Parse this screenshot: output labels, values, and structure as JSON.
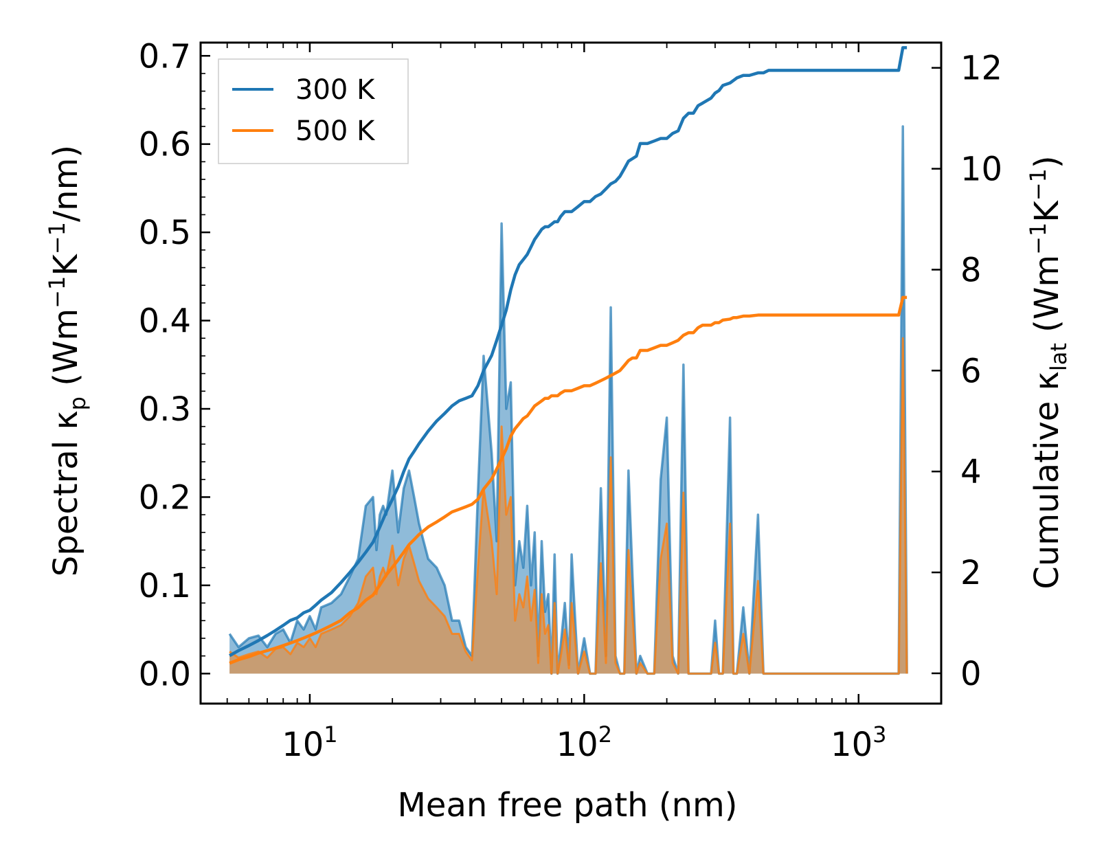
{
  "chart_data": {
    "type": "line",
    "xscale": "log",
    "xlabel": "Mean free path (nm)",
    "ylabel_left": "Spectral κp (Wm−1K−1/nm)",
    "ylabel_right": "Cumulative κlat (Wm−1K−1)",
    "xlim": [
      4.0,
      2000
    ],
    "ylim_left": [
      -0.034,
      0.715
    ],
    "ylim_right": [
      -0.6,
      12.5
    ],
    "xticks": [
      {
        "base": "10",
        "exp": "1",
        "value": 10
      },
      {
        "base": "10",
        "exp": "2",
        "value": 100
      },
      {
        "base": "10",
        "exp": "3",
        "value": 1000
      }
    ],
    "yticks_left": [
      "0.0",
      "0.1",
      "0.2",
      "0.3",
      "0.4",
      "0.5",
      "0.6",
      "0.7"
    ],
    "yticks_right": [
      "0",
      "2",
      "4",
      "6",
      "8",
      "10",
      "12"
    ],
    "colors": {
      "s300": "#1f77b4",
      "s500": "#ff7f0e",
      "fill300": "#1f77b4",
      "fill500": "#ff7f0e"
    },
    "legend": {
      "position": "top-left",
      "entries": [
        "300 K",
        "500 K"
      ]
    },
    "spectral_300K": {
      "x": [
        5.1,
        5.5,
        6.0,
        6.5,
        7.0,
        7.5,
        8.0,
        8.5,
        9.0,
        9.5,
        10,
        10.5,
        11,
        12,
        13,
        14,
        15,
        16,
        17,
        17.5,
        18,
        18.5,
        19,
        20,
        21,
        22,
        23,
        24,
        25,
        27,
        29,
        31,
        33,
        35,
        37,
        39,
        41,
        43,
        46,
        48,
        50,
        52,
        54,
        56,
        58,
        60,
        62,
        64,
        66,
        68,
        70,
        72,
        74,
        76,
        78,
        80,
        82,
        85,
        88,
        90,
        95,
        100,
        105,
        110,
        115,
        120,
        125,
        130,
        135,
        140,
        145,
        150,
        155,
        160,
        170,
        180,
        190,
        200,
        210,
        220,
        230,
        240,
        250,
        260,
        270,
        290,
        300,
        310,
        320,
        340,
        350,
        360,
        380,
        400,
        430,
        450,
        470,
        500,
        600,
        800,
        1000,
        1200,
        1400,
        1450,
        1500
      ],
      "y": [
        0.045,
        0.03,
        0.04,
        0.043,
        0.03,
        0.045,
        0.05,
        0.035,
        0.06,
        0.05,
        0.065,
        0.05,
        0.075,
        0.08,
        0.09,
        0.11,
        0.13,
        0.19,
        0.2,
        0.14,
        0.18,
        0.19,
        0.18,
        0.23,
        0.16,
        0.21,
        0.23,
        0.2,
        0.17,
        0.13,
        0.12,
        0.1,
        0.06,
        0.06,
        0.03,
        0.02,
        0.205,
        0.36,
        0.25,
        0.15,
        0.51,
        0.3,
        0.33,
        0.1,
        0.15,
        0.12,
        0.19,
        0.1,
        0.16,
        0.02,
        0.15,
        0.07,
        0.09,
        0.0,
        0.135,
        0.0,
        0.03,
        0.08,
        0.01,
        0.135,
        0.0,
        0.04,
        0.0,
        0.0,
        0.21,
        0.02,
        0.415,
        0.02,
        0.0,
        0.0,
        0.23,
        0.11,
        0.0,
        0.02,
        0.0,
        0.0,
        0.22,
        0.29,
        0.02,
        0.0,
        0.35,
        0.0,
        0.0,
        0.0,
        0.0,
        0.0,
        0.06,
        0.0,
        0.0,
        0.29,
        0.0,
        0.0,
        0.075,
        0.0,
        0.18,
        0.0,
        0.0,
        0.0,
        0.0,
        0.0,
        0.0,
        0.0,
        0.0,
        0.62,
        0.0
      ],
      "cumulative": [
        0.35,
        0.45,
        0.55,
        0.65,
        0.75,
        0.85,
        0.95,
        1.05,
        1.1,
        1.2,
        1.25,
        1.35,
        1.45,
        1.6,
        1.8,
        2.0,
        2.2,
        2.4,
        2.6,
        2.75,
        2.9,
        3.05,
        3.2,
        3.45,
        3.7,
        4.0,
        4.25,
        4.4,
        4.55,
        4.8,
        5.0,
        5.15,
        5.3,
        5.4,
        5.45,
        5.5,
        5.7,
        6.0,
        6.3,
        6.6,
        6.9,
        7.2,
        7.6,
        7.9,
        8.1,
        8.2,
        8.3,
        8.45,
        8.6,
        8.7,
        8.8,
        8.85,
        8.85,
        8.9,
        8.95,
        8.95,
        9.05,
        9.15,
        9.15,
        9.15,
        9.25,
        9.35,
        9.35,
        9.45,
        9.5,
        9.6,
        9.7,
        9.75,
        9.85,
        10.0,
        10.15,
        10.2,
        10.25,
        10.5,
        10.5,
        10.55,
        10.6,
        10.6,
        10.7,
        10.75,
        11.0,
        11.1,
        11.1,
        11.25,
        11.3,
        11.4,
        11.5,
        11.55,
        11.65,
        11.7,
        11.75,
        11.8,
        11.85,
        11.85,
        11.9,
        11.9,
        11.95,
        11.95,
        11.95,
        11.95,
        11.95,
        11.95,
        11.95,
        12.4,
        12.4
      ]
    },
    "spectral_500K": {
      "x": [
        5.1,
        5.5,
        6.0,
        6.5,
        7.0,
        7.5,
        8.0,
        8.5,
        9.0,
        9.5,
        10,
        10.5,
        11,
        12,
        13,
        14,
        15,
        16,
        17,
        17.5,
        18,
        18.5,
        19,
        20,
        21,
        22,
        23,
        24,
        25,
        27,
        29,
        31,
        33,
        35,
        37,
        39,
        41,
        43,
        46,
        48,
        50,
        52,
        54,
        56,
        58,
        60,
        62,
        64,
        66,
        68,
        70,
        72,
        74,
        76,
        78,
        80,
        82,
        85,
        88,
        90,
        95,
        100,
        105,
        110,
        115,
        120,
        125,
        130,
        135,
        140,
        145,
        150,
        155,
        160,
        170,
        180,
        190,
        200,
        210,
        220,
        230,
        240,
        250,
        260,
        270,
        290,
        300,
        310,
        320,
        340,
        350,
        360,
        380,
        400,
        430,
        450,
        470,
        500,
        600,
        800,
        1000,
        1200,
        1400,
        1450,
        1500
      ],
      "y": [
        0.025,
        0.018,
        0.022,
        0.025,
        0.018,
        0.028,
        0.03,
        0.022,
        0.035,
        0.03,
        0.04,
        0.03,
        0.045,
        0.05,
        0.055,
        0.065,
        0.08,
        0.11,
        0.12,
        0.09,
        0.11,
        0.12,
        0.11,
        0.145,
        0.1,
        0.13,
        0.145,
        0.125,
        0.105,
        0.085,
        0.075,
        0.065,
        0.045,
        0.045,
        0.025,
        0.015,
        0.12,
        0.21,
        0.15,
        0.09,
        0.28,
        0.18,
        0.2,
        0.06,
        0.09,
        0.075,
        0.11,
        0.06,
        0.095,
        0.012,
        0.09,
        0.045,
        0.055,
        0.0,
        0.08,
        0.0,
        0.018,
        0.05,
        0.006,
        0.08,
        0.0,
        0.025,
        0.0,
        0.0,
        0.125,
        0.012,
        0.245,
        0.012,
        0.0,
        0.0,
        0.14,
        0.065,
        0.0,
        0.012,
        0.0,
        0.0,
        0.13,
        0.17,
        0.012,
        0.0,
        0.205,
        0.0,
        0.0,
        0.0,
        0.0,
        0.0,
        0.035,
        0.0,
        0.0,
        0.17,
        0.0,
        0.0,
        0.045,
        0.0,
        0.105,
        0.0,
        0.0,
        0.0,
        0.0,
        0.0,
        0.0,
        0.0,
        0.0,
        0.38,
        0.0
      ],
      "cumulative": [
        0.2,
        0.27,
        0.33,
        0.4,
        0.45,
        0.5,
        0.55,
        0.6,
        0.65,
        0.7,
        0.75,
        0.8,
        0.85,
        0.95,
        1.05,
        1.2,
        1.3,
        1.45,
        1.55,
        1.65,
        1.75,
        1.85,
        1.95,
        2.1,
        2.25,
        2.4,
        2.55,
        2.65,
        2.75,
        2.9,
        3.0,
        3.1,
        3.2,
        3.25,
        3.3,
        3.35,
        3.45,
        3.65,
        3.85,
        4.05,
        4.25,
        4.45,
        4.7,
        4.85,
        4.95,
        5.05,
        5.1,
        5.2,
        5.3,
        5.35,
        5.4,
        5.45,
        5.45,
        5.5,
        5.5,
        5.5,
        5.55,
        5.6,
        5.6,
        5.6,
        5.65,
        5.7,
        5.7,
        5.75,
        5.8,
        5.85,
        5.9,
        5.95,
        6.0,
        6.1,
        6.2,
        6.25,
        6.25,
        6.4,
        6.4,
        6.45,
        6.5,
        6.5,
        6.55,
        6.6,
        6.7,
        6.75,
        6.75,
        6.85,
        6.9,
        6.9,
        6.95,
        6.95,
        7.0,
        7.02,
        7.05,
        7.05,
        7.08,
        7.08,
        7.1,
        7.1,
        7.1,
        7.1,
        7.1,
        7.1,
        7.1,
        7.1,
        7.1,
        7.45,
        7.45
      ]
    }
  }
}
